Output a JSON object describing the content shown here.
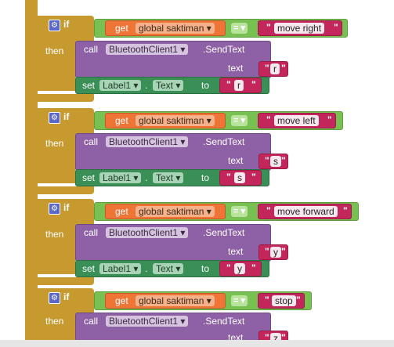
{
  "blocks": [
    {
      "if_label": "if",
      "then_label": "then",
      "get_label": "get",
      "variable": "global saktiman",
      "operator": "=",
      "compare_value": "move right",
      "call_label": "call",
      "component": "BluetoothClient1",
      "method": ".SendText",
      "text_param": "text",
      "send_value": "r",
      "set_label": "set",
      "target_component": "Label1",
      "dot": ".",
      "property": "Text",
      "to_label": "to",
      "set_value": "r"
    },
    {
      "if_label": "if",
      "then_label": "then",
      "get_label": "get",
      "variable": "global saktiman",
      "operator": "=",
      "compare_value": "move left",
      "call_label": "call",
      "component": "BluetoothClient1",
      "method": ".SendText",
      "text_param": "text",
      "send_value": "s",
      "set_label": "set",
      "target_component": "Label1",
      "dot": ".",
      "property": "Text",
      "to_label": "to",
      "set_value": "s"
    },
    {
      "if_label": "if",
      "then_label": "then",
      "get_label": "get",
      "variable": "global saktiman",
      "operator": "=",
      "compare_value": "move forward",
      "call_label": "call",
      "component": "BluetoothClient1",
      "method": ".SendText",
      "text_param": "text",
      "send_value": "y",
      "set_label": "set",
      "target_component": "Label1",
      "dot": ".",
      "property": "Text",
      "to_label": "to",
      "set_value": "y"
    },
    {
      "if_label": "if",
      "then_label": "then",
      "get_label": "get",
      "variable": "global saktiman",
      "operator": "=",
      "compare_value": "stop",
      "call_label": "call",
      "component": "BluetoothClient1",
      "method": ".SendText",
      "text_param": "text",
      "send_value": "z"
    }
  ],
  "quote_open": "\"",
  "quote_close": "\"",
  "dropdown_arrow": "▾",
  "gear_icon": "⚙",
  "colors": {
    "control": "#c69a2e",
    "logic": "#78c051",
    "variable": "#ef7537",
    "text": "#c2265a",
    "component_method": "#8e61a7",
    "component_setter": "#3a8f57"
  }
}
